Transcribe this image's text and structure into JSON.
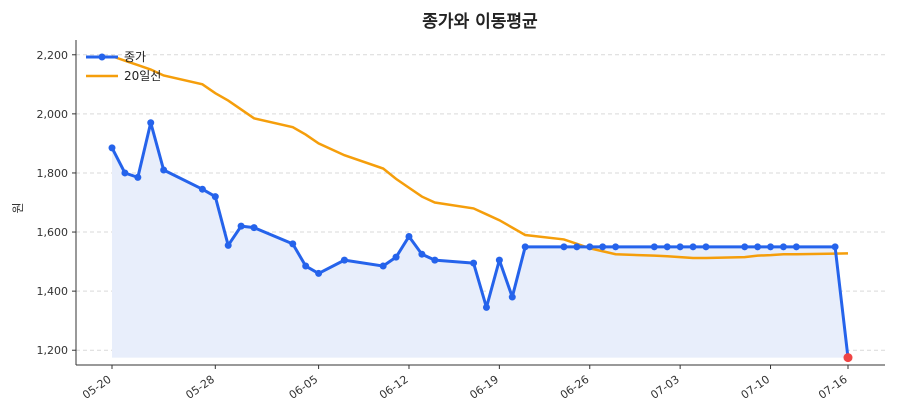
{
  "chart_data": {
    "type": "line",
    "title": "종가와 이동평균",
    "xlabel": "",
    "ylabel": "원",
    "ylim": [
      1150,
      2250
    ],
    "yticks": [
      1200,
      1400,
      1600,
      1800,
      2000,
      2200
    ],
    "ytick_labels": [
      "1,200",
      "1,400",
      "1,600",
      "1,800",
      "2,000",
      "2,200"
    ],
    "xticks": [
      "05-20",
      "05-28",
      "06-05",
      "06-12",
      "06-19",
      "06-26",
      "07-03",
      "07-10",
      "07-16"
    ],
    "grid": true,
    "legend_position": "top-left",
    "colors": {
      "close": "#2563eb",
      "ma": "#f59e0b",
      "fill": "#e8eefb",
      "last_point": "#ef4444"
    },
    "x": [
      "05-20",
      "05-21",
      "05-22",
      "05-23",
      "05-24",
      "05-27",
      "05-28",
      "05-29",
      "05-30",
      "05-31",
      "06-03",
      "06-04",
      "06-05",
      "06-07",
      "06-10",
      "06-11",
      "06-12",
      "06-13",
      "06-14",
      "06-17",
      "06-18",
      "06-19",
      "06-20",
      "06-21",
      "06-24",
      "06-25",
      "06-26",
      "06-27",
      "06-28",
      "07-01",
      "07-02",
      "07-03",
      "07-04",
      "07-05",
      "07-08",
      "07-09",
      "07-10",
      "07-11",
      "07-12",
      "07-15",
      "07-16"
    ],
    "series": [
      {
        "name": "종가",
        "style": "line-markers",
        "values": [
          1885,
          1800,
          1785,
          1970,
          1810,
          1745,
          1720,
          1555,
          1620,
          1615,
          1560,
          1485,
          1460,
          1505,
          1485,
          1515,
          1585,
          1525,
          1505,
          1495,
          1345,
          1505,
          1380,
          1550,
          1550,
          1550,
          1550,
          1550,
          1550,
          1550,
          1550,
          1550,
          1550,
          1550,
          1550,
          1550,
          1550,
          1550,
          1550,
          1550,
          1175
        ]
      },
      {
        "name": "20일선",
        "style": "line",
        "values": [
          2195,
          2180,
          2165,
          2150,
          2130,
          2100,
          2070,
          2045,
          2015,
          1985,
          1955,
          1930,
          1900,
          1860,
          1815,
          1780,
          1750,
          1720,
          1700,
          1680,
          1660,
          1640,
          1615,
          1590,
          1575,
          1560,
          1545,
          1535,
          1525,
          1520,
          1518,
          1515,
          1512,
          1512,
          1515,
          1520,
          1522,
          1525,
          1525,
          1527,
          1528
        ]
      }
    ]
  }
}
